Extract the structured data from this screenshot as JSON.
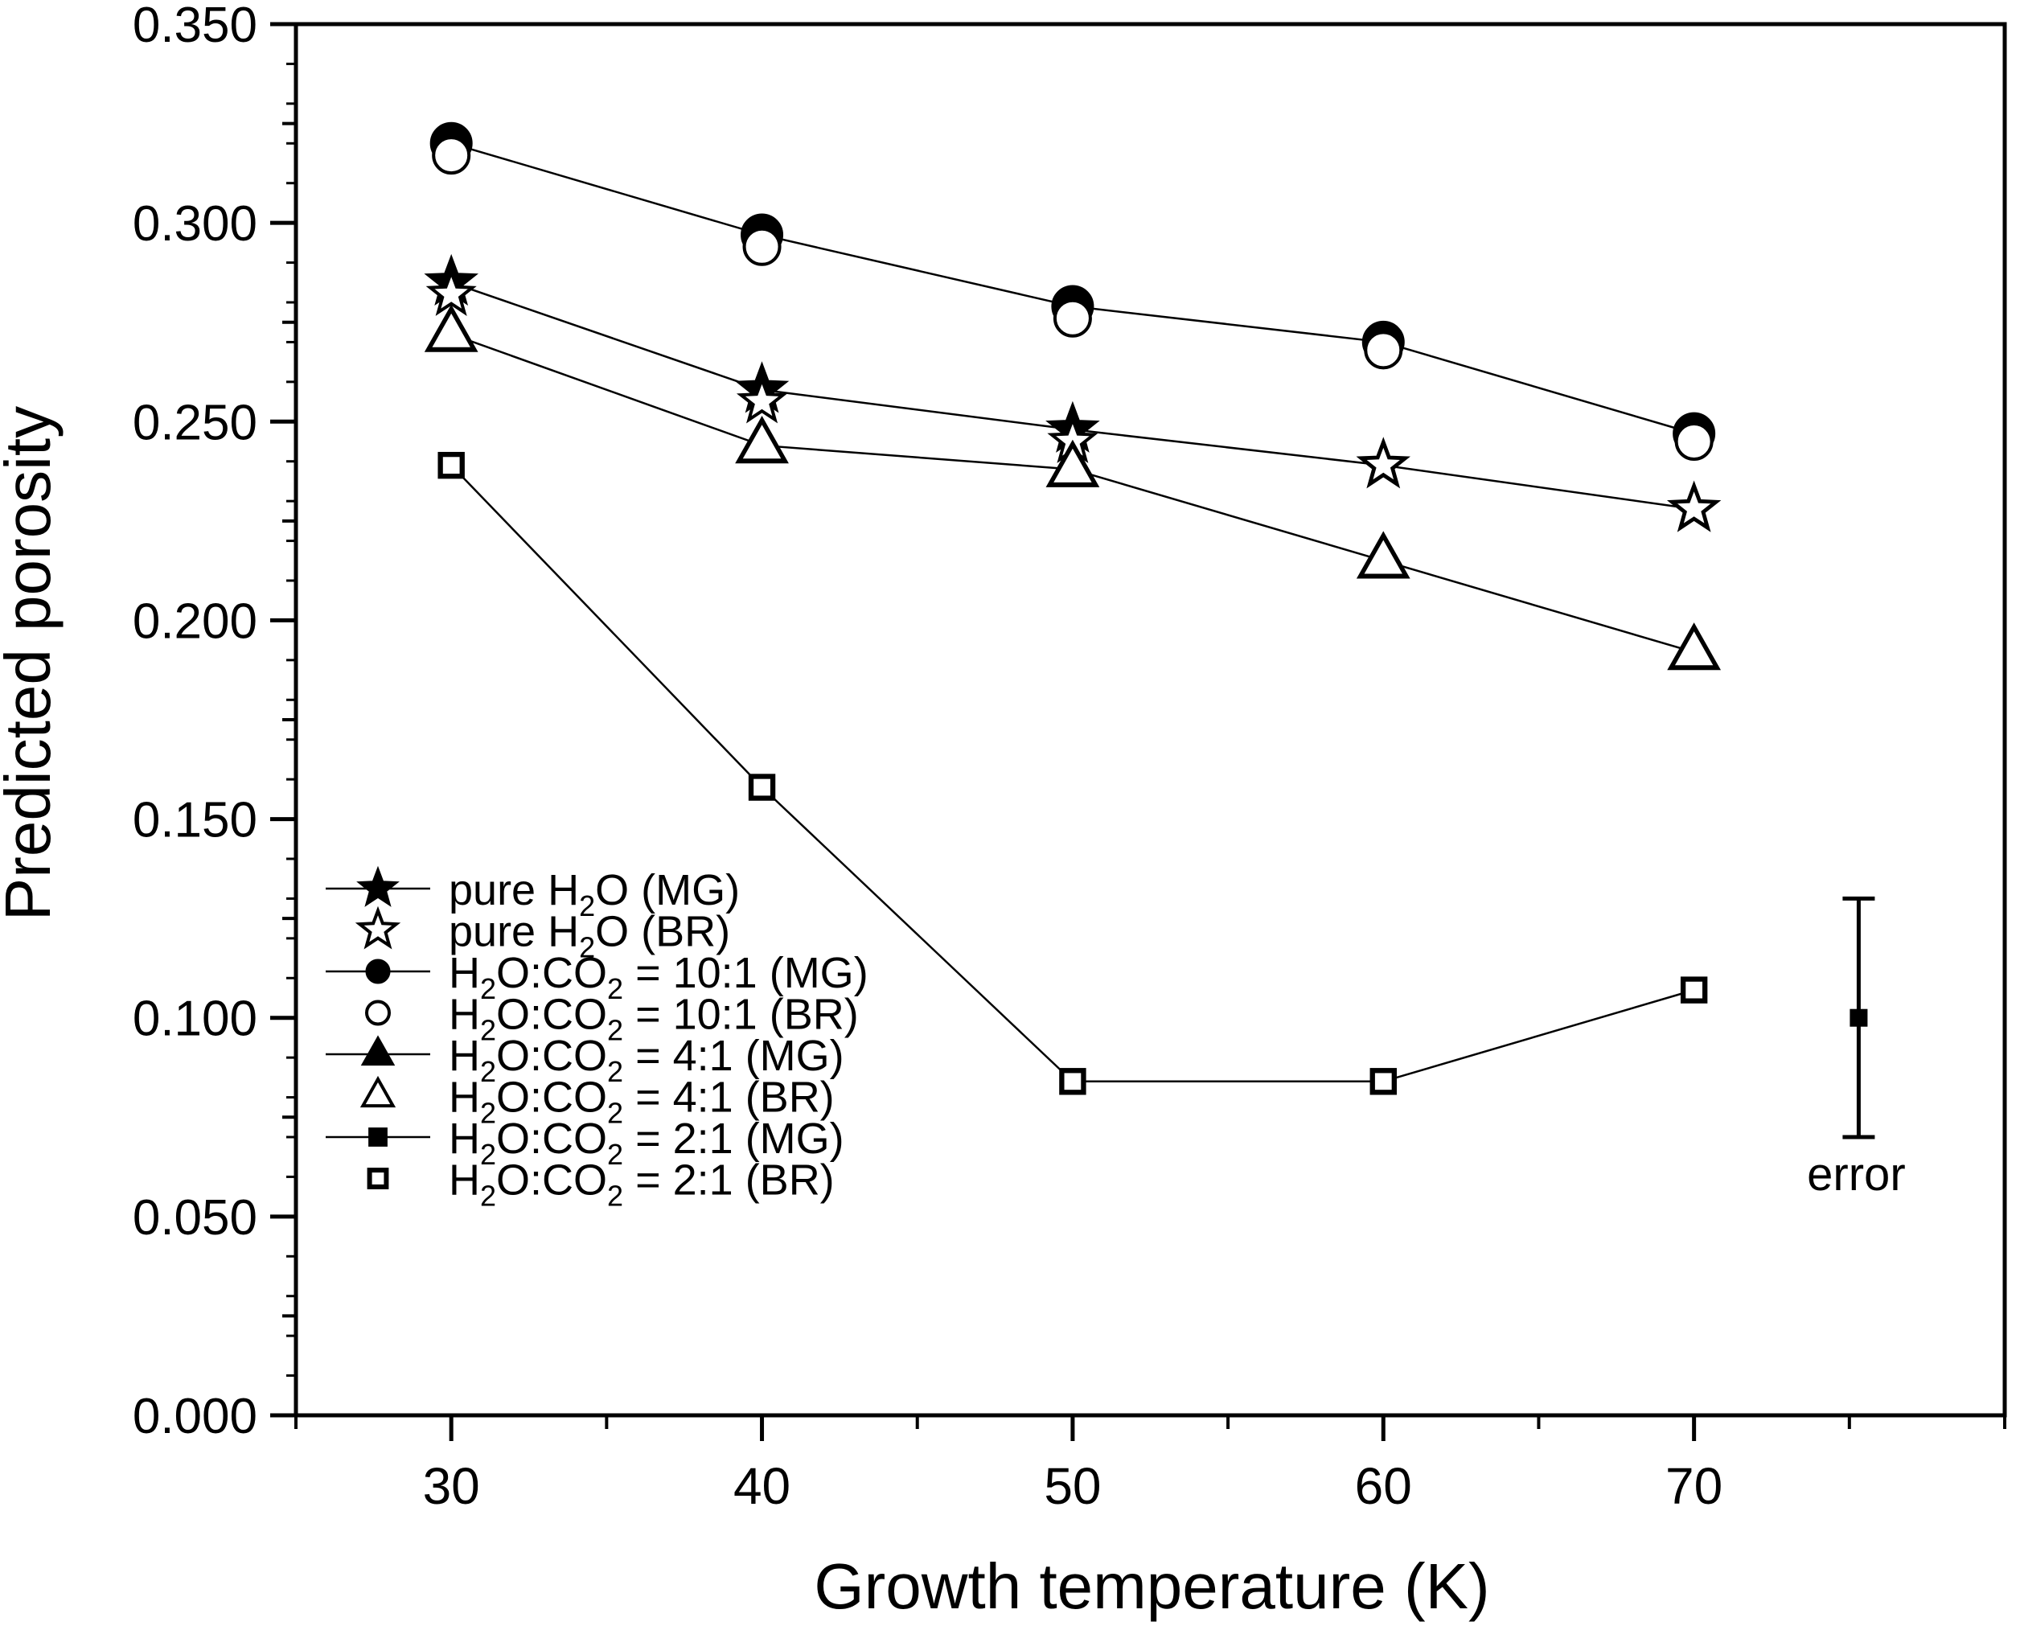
{
  "chart_data": {
    "type": "scatter",
    "xlabel": "Growth temperature (K)",
    "ylabel": "Predicted porosity",
    "xlim": [
      25,
      80
    ],
    "ylim": [
      0,
      0.35
    ],
    "x_ticks": [
      30,
      40,
      50,
      60,
      70
    ],
    "x_tick_labels": [
      "30",
      "40",
      "50",
      "60",
      "70"
    ],
    "y_ticks": [
      0,
      0.05,
      0.1,
      0.15,
      0.2,
      0.25,
      0.3,
      0.35
    ],
    "y_tick_labels": [
      "0.000",
      "0.050",
      "0.100",
      "0.150",
      "0.200",
      "0.250",
      "0.300",
      "0.350"
    ],
    "x": [
      30,
      40,
      50,
      60,
      70
    ],
    "grid": false,
    "legend_position": "bottom-left",
    "series": [
      {
        "name": "pure H2O (MG)",
        "legend": {
          "pre": "pure H",
          "sub": "2",
          "post": "O (MG)"
        },
        "marker": "star",
        "filled": true,
        "line": true,
        "values": [
          0.285,
          0.258,
          0.248,
          0.239,
          0.228
        ]
      },
      {
        "name": "pure H2O (BR)",
        "legend": {
          "pre": "pure H",
          "sub": "2",
          "post": "O (BR)"
        },
        "marker": "star",
        "filled": false,
        "line": false,
        "values": [
          0.282,
          0.255,
          0.245,
          0.239,
          0.228
        ]
      },
      {
        "name": "H2O:CO2 = 10:1 (MG)",
        "legend": {
          "pre": "H",
          "sub": "2",
          "mid": "O:CO",
          "sub2": "2",
          "post": " = 10:1 (MG)"
        },
        "marker": "circle",
        "filled": true,
        "line": true,
        "values": [
          0.32,
          0.297,
          0.279,
          0.27,
          0.247
        ]
      },
      {
        "name": "H2O:CO2 = 10:1 (BR)",
        "legend": {
          "pre": "H",
          "sub": "2",
          "mid": "O:CO",
          "sub2": "2",
          "post": " = 10:1 (BR)"
        },
        "marker": "circle",
        "filled": false,
        "line": false,
        "values": [
          0.317,
          0.294,
          0.276,
          0.268,
          0.245
        ]
      },
      {
        "name": "H2O:CO2 = 4:1 (MG)",
        "legend": {
          "pre": "H",
          "sub": "2",
          "mid": "O:CO",
          "sub2": "2",
          "post": " = 4:1 (MG)"
        },
        "marker": "triangle",
        "filled": true,
        "line": true,
        "values": [
          0.272,
          0.244,
          0.238,
          0.215,
          0.192
        ]
      },
      {
        "name": "H2O:CO2 = 4:1 (BR)",
        "legend": {
          "pre": "H",
          "sub": "2",
          "mid": "O:CO",
          "sub2": "2",
          "post": " = 4:1 (BR)"
        },
        "marker": "triangle",
        "filled": false,
        "line": false,
        "values": [
          0.272,
          0.244,
          0.238,
          0.215,
          0.192
        ]
      },
      {
        "name": "H2O:CO2 = 2:1 (MG)",
        "legend": {
          "pre": "H",
          "sub": "2",
          "mid": "O:CO",
          "sub2": "2",
          "post": " = 2:1 (MG)"
        },
        "marker": "square",
        "filled": true,
        "line": true,
        "values": [
          0.239,
          0.158,
          0.084,
          0.084,
          0.107
        ]
      },
      {
        "name": "H2O:CO2 = 2:1 (BR)",
        "legend": {
          "pre": "H",
          "sub": "2",
          "mid": "O:CO",
          "sub2": "2",
          "post": " = 2:1 (BR)"
        },
        "marker": "square",
        "filled": false,
        "line": false,
        "values": [
          0.239,
          0.158,
          0.084,
          0.084,
          0.107
        ]
      }
    ],
    "annotations": [
      {
        "type": "error_bar",
        "x": 75.3,
        "y": 0.1,
        "low": 0.07,
        "high": 0.13,
        "label": "error"
      }
    ]
  }
}
